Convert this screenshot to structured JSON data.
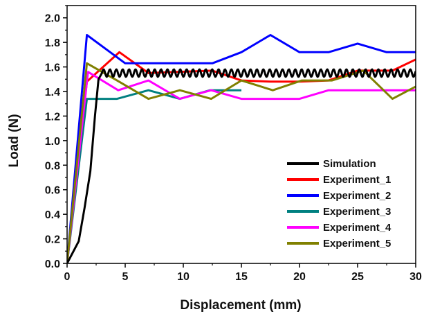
{
  "chart_data": {
    "type": "line",
    "title": "",
    "xlabel": "Displacement (mm)",
    "ylabel": "Load (N)",
    "xlim": [
      0,
      30
    ],
    "ylim": [
      0,
      2.1
    ],
    "x_ticks": [
      "0",
      "5",
      "10",
      "15",
      "20",
      "25",
      "30"
    ],
    "y_ticks": [
      "0.0",
      "0.2",
      "0.4",
      "0.6",
      "0.8",
      "1.0",
      "1.2",
      "1.4",
      "1.6",
      "1.8",
      "2.0"
    ],
    "grid": false,
    "legend_position": "bottom-right",
    "series": [
      {
        "name": "Simulation",
        "color": "#000000",
        "x": [
          0,
          1,
          1.5,
          2,
          2.4,
          2.7,
          3.0
        ],
        "y": [
          0,
          0.18,
          0.45,
          0.75,
          1.2,
          1.5,
          1.55
        ],
        "oscillation": {
          "x_start": 3.0,
          "x_end": 30.0,
          "mean": 1.55,
          "amplitude": 0.03,
          "period": 0.55
        }
      },
      {
        "name": "Experiment_1",
        "color": "#ff0000",
        "x": [
          0,
          1.7,
          4.5,
          7,
          9.5,
          12.5,
          15,
          17.5,
          20,
          22.5,
          25,
          28,
          30
        ],
        "y": [
          0,
          1.48,
          1.72,
          1.55,
          1.56,
          1.57,
          1.49,
          1.48,
          1.48,
          1.49,
          1.57,
          1.57,
          1.66
        ]
      },
      {
        "name": "Experiment_2",
        "color": "#0000ff",
        "x": [
          0,
          1.7,
          5,
          7.5,
          12.5,
          15,
          17.5,
          20,
          22.5,
          25,
          27.5,
          30
        ],
        "y": [
          0,
          1.86,
          1.63,
          1.63,
          1.63,
          1.72,
          1.86,
          1.72,
          1.72,
          1.79,
          1.72,
          1.72
        ]
      },
      {
        "name": "Experiment_3",
        "color": "#008080",
        "x": [
          0,
          1.7,
          4.3,
          7,
          9.7,
          12.3,
          15
        ],
        "y": [
          0,
          1.34,
          1.34,
          1.41,
          1.34,
          1.41,
          1.41
        ]
      },
      {
        "name": "Experiment_4",
        "color": "#ff00ff",
        "x": [
          0,
          1.8,
          4.4,
          7,
          9.7,
          12.4,
          15,
          17.5,
          20,
          22.5,
          25,
          27.5,
          30
        ],
        "y": [
          0,
          1.56,
          1.41,
          1.49,
          1.34,
          1.41,
          1.34,
          1.34,
          1.34,
          1.41,
          1.41,
          1.41,
          1.41
        ]
      },
      {
        "name": "Experiment_5",
        "color": "#808000",
        "x": [
          0,
          1.7,
          4.3,
          7,
          9.7,
          12.4,
          15,
          17.7,
          20.2,
          22.8,
          25.5,
          28,
          30
        ],
        "y": [
          0,
          1.63,
          1.49,
          1.34,
          1.41,
          1.34,
          1.49,
          1.41,
          1.49,
          1.49,
          1.57,
          1.34,
          1.44
        ]
      }
    ]
  }
}
